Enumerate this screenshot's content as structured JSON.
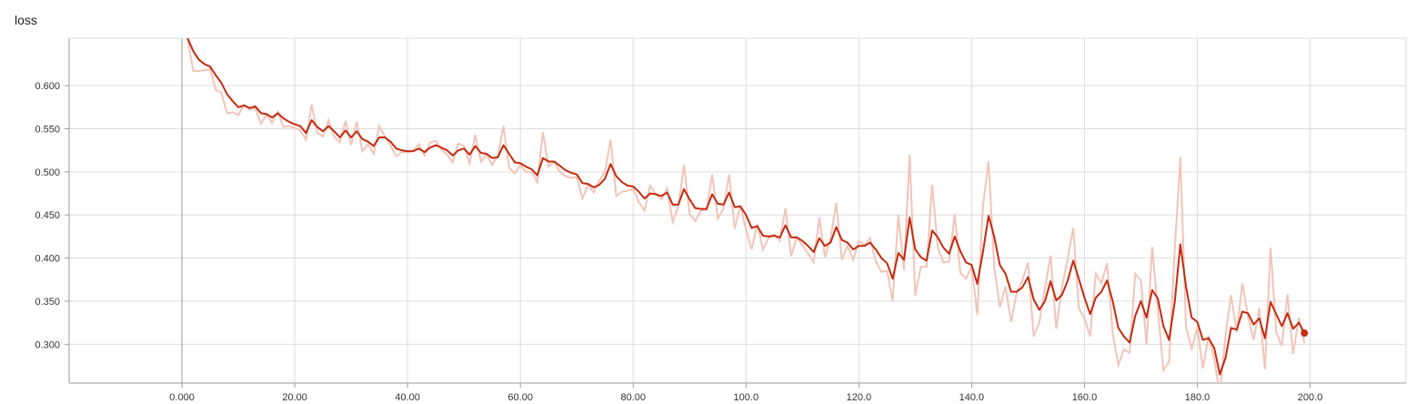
{
  "chart_data": {
    "type": "line",
    "title": "loss",
    "xlabel": "",
    "ylabel": "",
    "xlim": [
      -20,
      217
    ],
    "ylim": [
      0.255,
      0.655
    ],
    "x_ticks": [
      "0.000",
      "20.00",
      "40.00",
      "60.00",
      "80.00",
      "100.0",
      "120.0",
      "140.0",
      "160.0",
      "180.0",
      "200.0"
    ],
    "x_tick_values": [
      0,
      20,
      40,
      60,
      80,
      100,
      120,
      140,
      160,
      180,
      200
    ],
    "y_ticks": [
      "0.300",
      "0.350",
      "0.400",
      "0.450",
      "0.500",
      "0.550",
      "0.600"
    ],
    "y_tick_values": [
      0.3,
      0.35,
      0.4,
      0.45,
      0.5,
      0.55,
      0.6
    ],
    "grid": true,
    "colors": {
      "smoothed": "#c42b0f",
      "raw": "#f2c4b9",
      "grid": "#dddddd",
      "axis": "#999999",
      "zero_line": "#9e9e9e"
    },
    "series": [
      {
        "role": "smoothed",
        "x": [
          1,
          2,
          3,
          4,
          5,
          6,
          7,
          8,
          9,
          10,
          11,
          12,
          13,
          14,
          15,
          16,
          17,
          18,
          19,
          20,
          21,
          22,
          23,
          24,
          25,
          26,
          27,
          28,
          29,
          30,
          31,
          32,
          33,
          34,
          35,
          36,
          37,
          38,
          39,
          40,
          41,
          42,
          43,
          44,
          45,
          46,
          47,
          48,
          49,
          50,
          51,
          52,
          53,
          54,
          55,
          56,
          57,
          58,
          59,
          60,
          61,
          62,
          63,
          64,
          65,
          66,
          67,
          68,
          69,
          70,
          71,
          72,
          73,
          74,
          75,
          76,
          77,
          78,
          79,
          80,
          81,
          82,
          83,
          84,
          85,
          86,
          87,
          88,
          89,
          90,
          91,
          92,
          93,
          94,
          95,
          96,
          97,
          98,
          99,
          100,
          101,
          102,
          103,
          104,
          105,
          106,
          107,
          108,
          109,
          110,
          111,
          112,
          113,
          114,
          115,
          116,
          117,
          118,
          119,
          120,
          121,
          122,
          123,
          124,
          125,
          126,
          127,
          128,
          129,
          130,
          131,
          132,
          133,
          134,
          135,
          136,
          137,
          138,
          139,
          140,
          141,
          142,
          143,
          144,
          145,
          146,
          147,
          148,
          149,
          150,
          151,
          152,
          153,
          154,
          155,
          156,
          157,
          158,
          159,
          160,
          161,
          162,
          163,
          164,
          165,
          166,
          167,
          168,
          169,
          170,
          171,
          172,
          173,
          174,
          175,
          176,
          177,
          178,
          179,
          180,
          181,
          182,
          183,
          184,
          185,
          186,
          187,
          188,
          189,
          190,
          191,
          192,
          193,
          194,
          195,
          196,
          197,
          198,
          199
        ],
        "y": [
          0.655,
          0.64,
          0.63,
          0.625,
          0.622,
          0.612,
          0.603,
          0.59,
          0.582,
          0.575,
          0.577,
          0.574,
          0.576,
          0.568,
          0.567,
          0.563,
          0.568,
          0.562,
          0.558,
          0.555,
          0.553,
          0.545,
          0.56,
          0.552,
          0.547,
          0.553,
          0.547,
          0.54,
          0.548,
          0.54,
          0.547,
          0.538,
          0.535,
          0.53,
          0.54,
          0.54,
          0.535,
          0.527,
          0.525,
          0.524,
          0.524,
          0.527,
          0.523,
          0.528,
          0.531,
          0.528,
          0.525,
          0.519,
          0.525,
          0.527,
          0.52,
          0.53,
          0.522,
          0.521,
          0.516,
          0.517,
          0.531,
          0.521,
          0.511,
          0.51,
          0.506,
          0.503,
          0.496,
          0.516,
          0.512,
          0.512,
          0.507,
          0.502,
          0.499,
          0.497,
          0.487,
          0.486,
          0.482,
          0.485,
          0.492,
          0.509,
          0.495,
          0.488,
          0.484,
          0.483,
          0.477,
          0.469,
          0.475,
          0.474,
          0.472,
          0.476,
          0.462,
          0.462,
          0.48,
          0.468,
          0.458,
          0.457,
          0.457,
          0.474,
          0.463,
          0.462,
          0.476,
          0.459,
          0.46,
          0.45,
          0.435,
          0.437,
          0.426,
          0.425,
          0.426,
          0.424,
          0.438,
          0.424,
          0.424,
          0.42,
          0.414,
          0.407,
          0.423,
          0.414,
          0.418,
          0.436,
          0.421,
          0.418,
          0.41,
          0.414,
          0.414,
          0.418,
          0.41,
          0.4,
          0.394,
          0.376,
          0.406,
          0.398,
          0.447,
          0.41,
          0.401,
          0.397,
          0.432,
          0.424,
          0.412,
          0.405,
          0.425,
          0.408,
          0.395,
          0.392,
          0.37,
          0.407,
          0.449,
          0.425,
          0.392,
          0.382,
          0.361,
          0.361,
          0.366,
          0.378,
          0.352,
          0.34,
          0.35,
          0.373,
          0.351,
          0.357,
          0.373,
          0.397,
          0.376,
          0.354,
          0.335,
          0.354,
          0.361,
          0.374,
          0.35,
          0.319,
          0.309,
          0.302,
          0.333,
          0.35,
          0.331,
          0.363,
          0.353,
          0.321,
          0.305,
          0.349,
          0.416,
          0.367,
          0.331,
          0.326,
          0.305,
          0.307,
          0.296,
          0.265,
          0.284,
          0.319,
          0.317,
          0.338,
          0.336,
          0.323,
          0.33,
          0.307,
          0.349,
          0.335,
          0.321,
          0.336,
          0.318,
          0.325,
          0.313
        ]
      },
      {
        "role": "raw",
        "x": [
          1,
          2,
          3,
          4,
          5,
          6,
          7,
          8,
          9,
          10,
          11,
          12,
          13,
          14,
          15,
          16,
          17,
          18,
          19,
          20,
          21,
          22,
          23,
          24,
          25,
          26,
          27,
          28,
          29,
          30,
          31,
          32,
          33,
          34,
          35,
          36,
          37,
          38,
          39,
          40,
          41,
          42,
          43,
          44,
          45,
          46,
          47,
          48,
          49,
          50,
          51,
          52,
          53,
          54,
          55,
          56,
          57,
          58,
          59,
          60,
          61,
          62,
          63,
          64,
          65,
          66,
          67,
          68,
          69,
          70,
          71,
          72,
          73,
          74,
          75,
          76,
          77,
          78,
          79,
          80,
          81,
          82,
          83,
          84,
          85,
          86,
          87,
          88,
          89,
          90,
          91,
          92,
          93,
          94,
          95,
          96,
          97,
          98,
          99,
          100,
          101,
          102,
          103,
          104,
          105,
          106,
          107,
          108,
          109,
          110,
          111,
          112,
          113,
          114,
          115,
          116,
          117,
          118,
          119,
          120,
          121,
          122,
          123,
          124,
          125,
          126,
          127,
          128,
          129,
          130,
          131,
          132,
          133,
          134,
          135,
          136,
          137,
          138,
          139,
          140,
          141,
          142,
          143,
          144,
          145,
          146,
          147,
          148,
          149,
          150,
          151,
          152,
          153,
          154,
          155,
          156,
          157,
          158,
          159,
          160,
          161,
          162,
          163,
          164,
          165,
          166,
          167,
          168,
          169,
          170,
          171,
          172,
          173,
          174,
          175,
          176,
          177,
          178,
          179,
          180,
          181,
          182,
          183,
          184,
          185,
          186,
          187,
          188,
          189,
          190,
          191,
          192,
          193,
          194,
          195,
          196,
          197,
          198,
          199
        ],
        "y": [
          0.655,
          0.617,
          0.617,
          0.618,
          0.619,
          0.595,
          0.592,
          0.568,
          0.569,
          0.566,
          0.578,
          0.572,
          0.574,
          0.556,
          0.566,
          0.557,
          0.57,
          0.552,
          0.553,
          0.551,
          0.548,
          0.537,
          0.578,
          0.545,
          0.541,
          0.56,
          0.541,
          0.534,
          0.559,
          0.531,
          0.558,
          0.524,
          0.532,
          0.521,
          0.553,
          0.541,
          0.53,
          0.518,
          0.523,
          0.523,
          0.524,
          0.532,
          0.519,
          0.534,
          0.536,
          0.526,
          0.52,
          0.511,
          0.533,
          0.53,
          0.51,
          0.543,
          0.512,
          0.52,
          0.508,
          0.519,
          0.553,
          0.505,
          0.498,
          0.508,
          0.5,
          0.5,
          0.488,
          0.546,
          0.506,
          0.512,
          0.5,
          0.495,
          0.493,
          0.494,
          0.469,
          0.485,
          0.476,
          0.49,
          0.5,
          0.537,
          0.472,
          0.477,
          0.478,
          0.48,
          0.465,
          0.455,
          0.484,
          0.474,
          0.468,
          0.481,
          0.442,
          0.46,
          0.508,
          0.451,
          0.443,
          0.455,
          0.456,
          0.497,
          0.446,
          0.457,
          0.497,
          0.434,
          0.461,
          0.433,
          0.41,
          0.44,
          0.41,
          0.423,
          0.427,
          0.42,
          0.458,
          0.402,
          0.424,
          0.415,
          0.405,
          0.395,
          0.447,
          0.401,
          0.423,
          0.464,
          0.398,
          0.414,
          0.398,
          0.42,
          0.415,
          0.423,
          0.396,
          0.384,
          0.385,
          0.35,
          0.45,
          0.386,
          0.52,
          0.356,
          0.39,
          0.39,
          0.485,
          0.412,
          0.395,
          0.396,
          0.451,
          0.383,
          0.376,
          0.39,
          0.334,
          0.46,
          0.512,
          0.39,
          0.343,
          0.367,
          0.326,
          0.36,
          0.374,
          0.395,
          0.309,
          0.325,
          0.365,
          0.403,
          0.318,
          0.366,
          0.398,
          0.435,
          0.342,
          0.33,
          0.309,
          0.382,
          0.371,
          0.394,
          0.313,
          0.276,
          0.294,
          0.29,
          0.382,
          0.374,
          0.3,
          0.413,
          0.341,
          0.27,
          0.28,
          0.41,
          0.517,
          0.32,
          0.295,
          0.319,
          0.272,
          0.31,
          0.283,
          0.242,
          0.31,
          0.357,
          0.314,
          0.371,
          0.332,
          0.305,
          0.342,
          0.271,
          0.412,
          0.314,
          0.298,
          0.358,
          0.289,
          0.331,
          0.301
        ]
      }
    ]
  }
}
